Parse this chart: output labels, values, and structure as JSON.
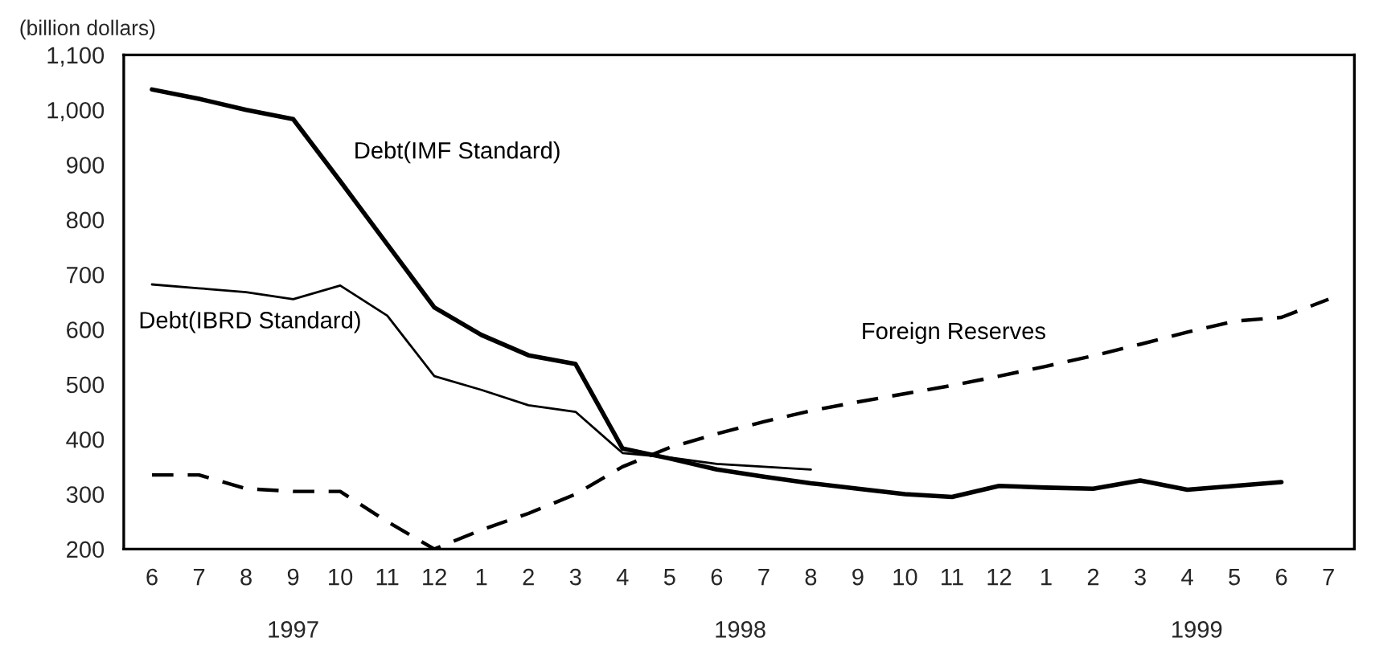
{
  "chart_data": {
    "type": "line",
    "ylabel": "(billion dollars)",
    "categories": [
      "6",
      "7",
      "8",
      "9",
      "10",
      "11",
      "12",
      "1",
      "2",
      "3",
      "4",
      "5",
      "6",
      "7",
      "8",
      "9",
      "10",
      "11",
      "12",
      "1",
      "2",
      "3",
      "4",
      "5",
      "6",
      "7"
    ],
    "series": [
      {
        "name": "Debt(IMF Standard)",
        "color": "#000000",
        "line_style": "solid",
        "values": [
          1037,
          1020,
          1000,
          983,
          870,
          755,
          640,
          590,
          553,
          537,
          383,
          365,
          345,
          332,
          320,
          310,
          300,
          295,
          315,
          312,
          310,
          325,
          308,
          315,
          322,
          null
        ]
      },
      {
        "name": "Debt(IBRD Standard)",
        "color": "#000000",
        "line_style": "solid",
        "values": [
          682,
          675,
          668,
          655,
          680,
          625,
          515,
          490,
          462,
          450,
          375,
          367,
          355,
          350,
          345,
          null,
          null,
          null,
          null,
          null,
          null,
          null,
          null,
          null,
          null,
          null
        ]
      },
      {
        "name": "Foreign Reserves",
        "color": "#000000",
        "line_style": "dashed",
        "values": [
          335,
          335,
          310,
          305,
          305,
          250,
          200,
          235,
          265,
          300,
          350,
          385,
          410,
          432,
          452,
          468,
          483,
          498,
          515,
          533,
          552,
          573,
          595,
          615,
          622,
          655
        ]
      }
    ],
    "ylim": [
      200,
      1100
    ],
    "yticks": [
      200,
      300,
      400,
      500,
      600,
      700,
      800,
      900,
      {
        "value": 1000,
        "label": "1,000"
      },
      {
        "value": 1100,
        "label": "1,100"
      }
    ],
    "grid": false,
    "annotations": [
      "1997",
      "1998",
      "1999"
    ]
  }
}
